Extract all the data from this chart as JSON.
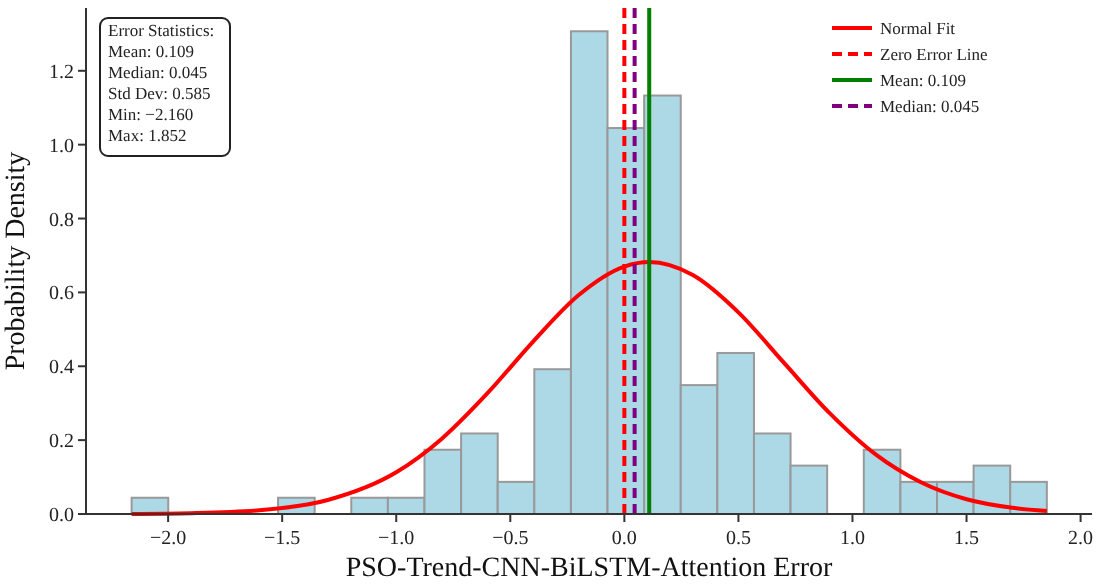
{
  "chart_data": {
    "type": "histogram",
    "xlabel": "PSO-Trend-CNN-BiLSTM-Attention Error",
    "ylabel": "Probability Density",
    "bins": [
      -2.16,
      -1.9995,
      -1.839,
      -1.6786,
      -1.5181,
      -1.3576,
      -1.1971,
      -1.0366,
      -0.8762,
      -0.7157,
      -0.5552,
      -0.3947,
      -0.2342,
      -0.0738,
      0.0867,
      0.2472,
      0.4077,
      0.5682,
      0.7286,
      0.8891,
      1.0496,
      1.2101,
      1.3706,
      1.531,
      1.6915,
      1.852
    ],
    "values": [
      0.044,
      0,
      0,
      0,
      0.044,
      0,
      0.044,
      0.044,
      0.174,
      0.218,
      0.087,
      0.392,
      1.307,
      1.045,
      1.133,
      0.349,
      0.436,
      0.218,
      0.131,
      0,
      0.174,
      0.087,
      0.087,
      0.131,
      0.087
    ],
    "color": "#add8e6",
    "series": [
      {
        "name": "Normal Fit",
        "type": "line",
        "color": "#ff0000",
        "line_style": "solid",
        "x": [
          -2.16,
          -1.9,
          -1.6,
          -1.3,
          -1.0,
          -0.8,
          -0.6,
          -0.4,
          -0.2,
          0.0,
          0.109,
          0.3,
          0.5,
          0.7,
          0.9,
          1.1,
          1.3,
          1.5,
          1.7,
          1.852
        ],
        "values": [
          0.0,
          0.002,
          0.01,
          0.038,
          0.113,
          0.204,
          0.327,
          0.467,
          0.593,
          0.67,
          0.682,
          0.647,
          0.546,
          0.409,
          0.273,
          0.162,
          0.086,
          0.04,
          0.017,
          0.008
        ]
      },
      {
        "name": "Zero Error Line",
        "type": "line",
        "color": "#ff0000",
        "line_style": "dashed",
        "x": [
          0,
          0
        ],
        "values": [
          0,
          1.37
        ]
      },
      {
        "name": "Mean: 0.109",
        "type": "line",
        "color": "#008000",
        "line_style": "solid",
        "x": [
          0.109,
          0.109
        ],
        "values": [
          0,
          1.37
        ]
      },
      {
        "name": "Median: 0.045",
        "type": "line",
        "color": "#800080",
        "line_style": "dashed",
        "x": [
          0.045,
          0.045
        ],
        "values": [
          0,
          1.37
        ]
      }
    ],
    "annotations": [
      "Error Statistics:",
      "Mean: 0.109",
      "Median: 0.045",
      "Std Dev: 0.585",
      "Min: −2.160",
      "Max: 1.852"
    ],
    "xlim": [
      -2.36,
      2.05
    ],
    "ylim": [
      0,
      1.37
    ],
    "xticks": [
      {
        "value": -2,
        "label": "−2.0"
      },
      {
        "value": -1.5,
        "label": "−1.5"
      },
      {
        "value": -1,
        "label": "−1.0"
      },
      {
        "value": -0.5,
        "label": "−0.5"
      },
      {
        "value": 0,
        "label": "0.0"
      },
      {
        "value": 0.5,
        "label": "0.5"
      },
      {
        "value": 1,
        "label": "1.0"
      },
      {
        "value": 1.5,
        "label": "1.5"
      },
      {
        "value": 2,
        "label": "2.0"
      }
    ],
    "yticks": [
      {
        "value": 0,
        "label": "0.0"
      },
      {
        "value": 0.2,
        "label": "0.2"
      },
      {
        "value": 0.4,
        "label": "0.4"
      },
      {
        "value": 0.6,
        "label": "0.6"
      },
      {
        "value": 0.8,
        "label": "0.8"
      },
      {
        "value": 1,
        "label": "1.0"
      },
      {
        "value": 1.2,
        "label": "1.2"
      }
    ],
    "legend": "top right",
    "grid": false
  }
}
